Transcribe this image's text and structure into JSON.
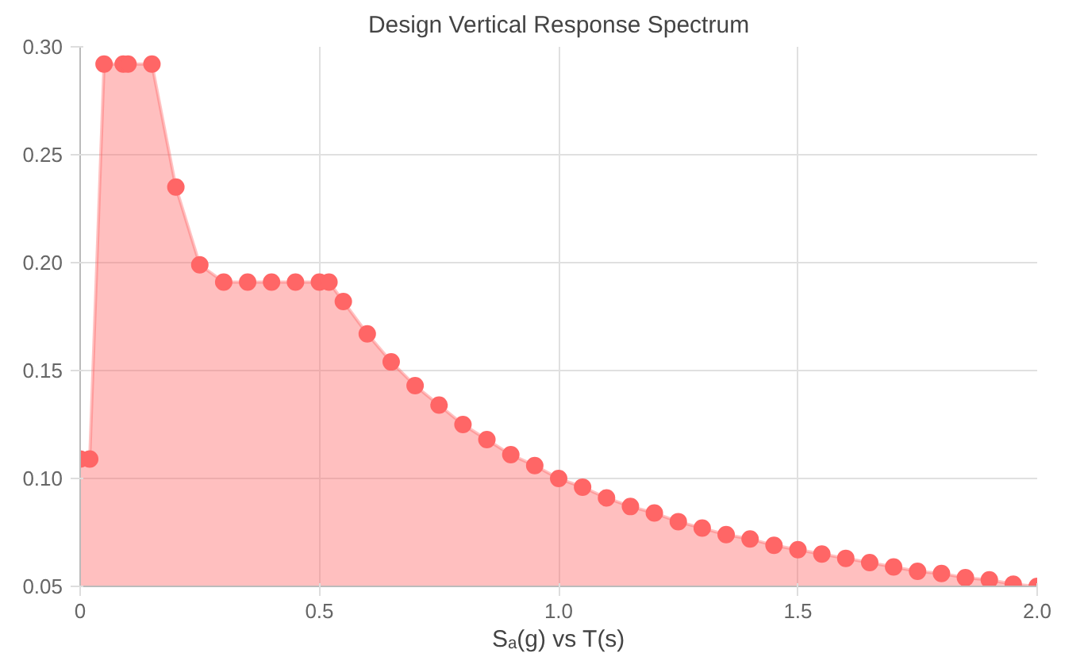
{
  "chart_data": {
    "type": "area",
    "title": "Design Vertical Response Spectrum",
    "xlabel": "Sₐ(g) vs T(s)",
    "x": [
      0,
      0.02,
      0.05,
      0.09,
      0.1,
      0.15,
      0.2,
      0.25,
      0.3,
      0.35,
      0.4,
      0.45,
      0.5,
      0.52,
      0.55,
      0.6,
      0.65,
      0.7,
      0.75,
      0.8,
      0.85,
      0.9,
      0.95,
      1.0,
      1.05,
      1.1,
      1.15,
      1.2,
      1.25,
      1.3,
      1.35,
      1.4,
      1.45,
      1.5,
      1.55,
      1.6,
      1.65,
      1.7,
      1.75,
      1.8,
      1.85,
      1.9,
      1.95,
      2.0
    ],
    "series": [
      {
        "color": "#ff6666",
        "values": [
          0.109,
          0.109,
          0.292,
          0.292,
          0.292,
          0.292,
          0.235,
          0.199,
          0.191,
          0.191,
          0.191,
          0.191,
          0.191,
          0.191,
          0.182,
          0.167,
          0.154,
          0.143,
          0.134,
          0.125,
          0.118,
          0.111,
          0.106,
          0.1,
          0.096,
          0.091,
          0.087,
          0.084,
          0.08,
          0.077,
          0.074,
          0.072,
          0.069,
          0.067,
          0.065,
          0.063,
          0.061,
          0.059,
          0.057,
          0.056,
          0.054,
          0.053,
          0.051,
          0.05
        ]
      }
    ],
    "xlim": [
      0,
      2
    ],
    "ylim": [
      0.05,
      0.3
    ],
    "xticks": [
      0,
      0.5,
      {
        "value": 1,
        "label": "1.0"
      },
      1.5,
      {
        "value": 2,
        "label": "2.0"
      }
    ],
    "yticks": [
      0.05,
      {
        "value": 0.1,
        "label": "0.10"
      },
      0.15,
      {
        "value": 0.2,
        "label": "0.20"
      },
      0.25,
      {
        "value": 0.3,
        "label": "0.30"
      }
    ],
    "grid": true,
    "marker": "circle"
  }
}
